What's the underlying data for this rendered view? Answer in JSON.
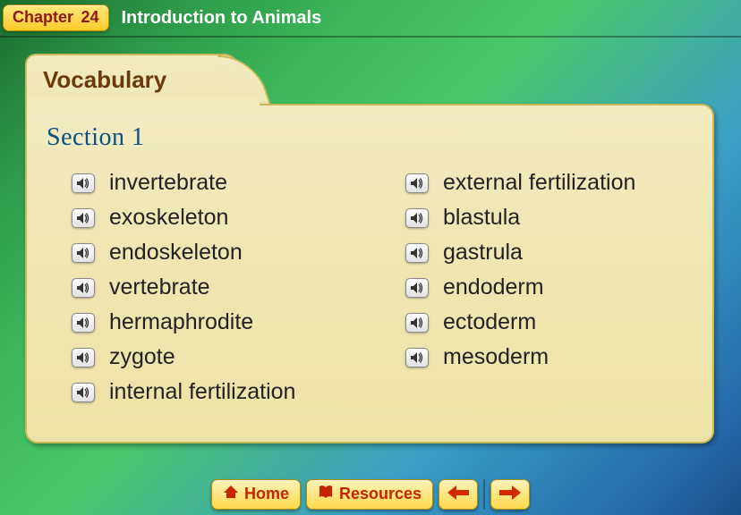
{
  "chapter": {
    "label": "Chapter",
    "number": "24",
    "title": "Introduction to Animals"
  },
  "tab": {
    "label": "Vocabulary"
  },
  "section": {
    "label": "Section 1"
  },
  "vocab": {
    "left": [
      "invertebrate",
      "exoskeleton",
      "endoskeleton",
      "vertebrate",
      "hermaphrodite",
      "zygote",
      "internal fertilization"
    ],
    "right": [
      "external fertilization",
      "blastula",
      "gastrula",
      "endoderm",
      "ectoderm",
      "mesoderm"
    ]
  },
  "nav": {
    "home": "Home",
    "resources": "Resources"
  },
  "colors": {
    "chapter_text": "#8a1a1a",
    "title_text": "#ffffff",
    "section_text": "#0b4f87",
    "tab_text": "#6a3a0c",
    "nav_text": "#c62400",
    "term_text": "#222222",
    "card_bg_top": "#f2ebc1",
    "card_bg_bottom": "#ede3a8",
    "card_border": "#c9b858",
    "badge_top": "#ffe87a",
    "badge_bottom": "#ffca2b",
    "arrow_fill": "#d22900"
  },
  "icons": {
    "sound": "speaker-icon",
    "home": "home-roof-icon",
    "resources": "book-icon",
    "prev": "arrow-left-icon",
    "next": "arrow-right-icon"
  }
}
